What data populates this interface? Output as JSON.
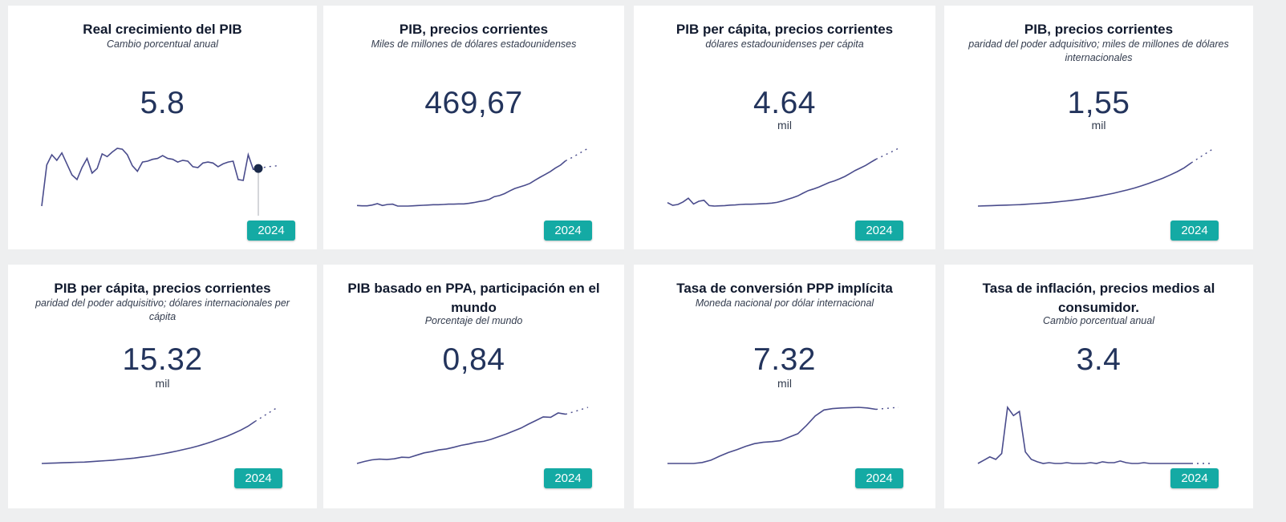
{
  "cards": [
    {
      "title": "Real crecimiento del PIB",
      "subtitle": "Cambio porcentual anual",
      "value": "5.8",
      "unit": "",
      "year": "2024",
      "series": [
        3.0,
        7.5,
        8.6,
        8.0,
        8.8,
        7.6,
        6.4,
        5.9,
        7.2,
        8.2,
        6.6,
        7.1,
        8.7,
        8.4,
        8.9,
        9.3,
        9.2,
        8.6,
        7.4,
        6.8,
        7.8,
        7.9,
        8.1,
        8.2,
        8.5,
        8.2,
        8.1,
        7.8,
        8.0,
        7.9,
        7.3,
        7.2,
        7.7,
        7.8,
        7.7,
        7.3,
        7.6,
        7.8,
        7.9,
        5.9,
        5.8,
        8.6,
        7.0,
        7.1
      ],
      "projection": [
        7.1,
        7.3,
        7.4
      ],
      "marker": true
    },
    {
      "title": "PIB, precios corrientes",
      "subtitle": "Miles de millones de dólares estadounidenses",
      "value": "469,67",
      "unit": "",
      "year": "2024",
      "series": [
        3.0,
        2.9,
        2.9,
        3.2,
        3.7,
        3.0,
        3.4,
        3.5,
        2.8,
        2.8,
        2.8,
        2.9,
        3.0,
        3.1,
        3.2,
        3.3,
        3.3,
        3.4,
        3.5,
        3.5,
        3.6,
        3.6,
        3.8,
        4.1,
        4.5,
        4.8,
        5.3,
        6.3,
        6.7,
        7.4,
        8.4,
        9.3,
        9.9,
        10.5,
        11.2,
        12.4,
        13.5,
        14.5,
        15.6,
        16.9,
        18.0,
        19.6
      ],
      "projection": [
        19.6,
        21.0,
        22.6,
        24.2
      ],
      "marker": false
    },
    {
      "title": "PIB per cápita, precios corrientes",
      "subtitle": "dólares estadounidenses per cápita",
      "value": "4.64",
      "unit": "mil",
      "year": "2024",
      "series": [
        4.3,
        3.1,
        3.5,
        4.6,
        6.2,
        3.7,
        4.9,
        5.3,
        3.0,
        2.8,
        2.9,
        3.0,
        3.2,
        3.3,
        3.5,
        3.6,
        3.6,
        3.7,
        3.8,
        3.9,
        4.1,
        4.4,
        5.0,
        5.7,
        6.4,
        7.2,
        8.4,
        9.5,
        10.2,
        11.0,
        12.0,
        13.0,
        13.7,
        14.6,
        15.6,
        16.9,
        18.2,
        19.3,
        20.4,
        21.8,
        23.1
      ],
      "projection": [
        23.1,
        24.6,
        26.2,
        27.8
      ],
      "marker": false
    },
    {
      "title": "PIB, precios corrientes",
      "subtitle": "paridad del poder adquisitivo; miles de millones de dólares internacionales",
      "value": "1,55",
      "unit": "mil",
      "year": "2024",
      "series": [
        3.0,
        3.1,
        3.2,
        3.3,
        3.4,
        3.5,
        3.6,
        3.8,
        4.0,
        4.2,
        4.4,
        4.7,
        5.0,
        5.3,
        5.7,
        6.1,
        6.6,
        7.1,
        7.7,
        8.3,
        9.0,
        9.7,
        10.5,
        11.4,
        12.4,
        13.5,
        14.6,
        15.9,
        17.3,
        18.9,
        21.0
      ],
      "projection": [
        21.0,
        23.0,
        25.0,
        27.0
      ],
      "marker": false
    },
    {
      "title": "PIB per cápita, precios corrientes",
      "subtitle": "paridad del poder adquisitivo; dólares internacionales per cápita",
      "value": "15.32",
      "unit": "mil",
      "year": "2024",
      "series": [
        3.0,
        3.1,
        3.2,
        3.3,
        3.4,
        3.5,
        3.6,
        3.8,
        4.0,
        4.2,
        4.4,
        4.7,
        5.0,
        5.3,
        5.7,
        6.1,
        6.6,
        7.1,
        7.7,
        8.3,
        9.0,
        9.7,
        10.5,
        11.4,
        12.4,
        13.5,
        14.6,
        15.9,
        17.3,
        18.9,
        21.0
      ],
      "projection": [
        21.0,
        23.0,
        25.0,
        27.0
      ],
      "marker": false
    },
    {
      "title": "PIB basado en PPA, participación en el mundo",
      "subtitle": "Porcentaje del mundo",
      "value": "0,84",
      "unit": "",
      "year": "2024",
      "series": [
        3.0,
        3.6,
        4.1,
        4.3,
        4.2,
        4.4,
        4.9,
        4.8,
        5.5,
        6.2,
        6.6,
        7.1,
        7.4,
        7.9,
        8.5,
        8.9,
        9.4,
        9.7,
        10.3,
        11.1,
        11.9,
        12.8,
        13.7,
        14.9,
        16.0,
        17.1,
        17.0,
        18.3,
        17.9
      ],
      "projection": [
        17.9,
        18.6,
        19.3,
        20.0
      ],
      "marker": false
    },
    {
      "title": "Tasa de conversión PPP implícita",
      "subtitle": "Moneda nacional por dólar internacional",
      "value": "7.32",
      "unit": "mil",
      "year": "2024",
      "series": [
        3.0,
        3.0,
        3.0,
        3.0,
        3.3,
        4.0,
        5.2,
        6.3,
        7.2,
        8.2,
        9.0,
        9.4,
        9.6,
        9.9,
        11.0,
        12.0,
        14.5,
        17.4,
        19.2,
        19.6,
        19.8,
        19.9,
        20.0,
        19.8,
        19.4
      ],
      "projection": [
        19.4,
        19.6,
        19.8,
        20.0
      ],
      "marker": false
    },
    {
      "title": "Tasa de inflación, precios medios al consumidor.",
      "subtitle": "Cambio porcentual anual",
      "value": "3.4",
      "unit": "",
      "year": "2024",
      "series": [
        3.0,
        3.4,
        3.8,
        3.5,
        4.2,
        9.8,
        8.8,
        9.3,
        4.4,
        3.5,
        3.2,
        3.0,
        3.1,
        3.0,
        3.0,
        3.1,
        3.0,
        3.0,
        3.0,
        3.1,
        3.0,
        3.2,
        3.1,
        3.1,
        3.3,
        3.1,
        3.0,
        3.0,
        3.1,
        3.0,
        3.0,
        3.0,
        3.0,
        3.0,
        3.0,
        3.0,
        3.0
      ],
      "projection": [
        3.0,
        3.0,
        3.0,
        3.0
      ],
      "marker": false
    }
  ]
}
